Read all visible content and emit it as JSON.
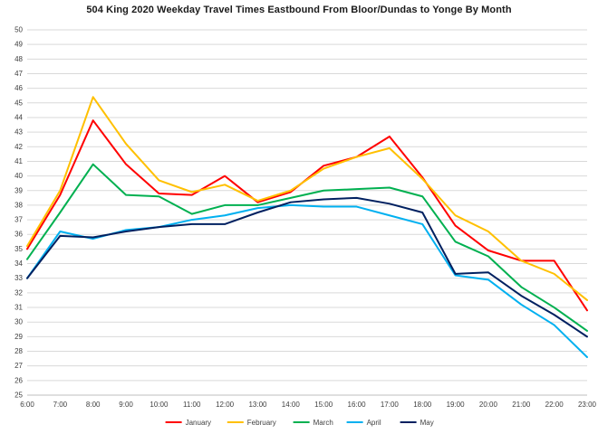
{
  "chart_data": {
    "type": "line",
    "title": "504 King 2020 Weekday Travel Times Eastbound From Bloor/Dundas to Yonge By Month",
    "x": [
      "6:00",
      "7:00",
      "8:00",
      "9:00",
      "10:00",
      "11:00",
      "12:00",
      "13:00",
      "14:00",
      "15:00",
      "16:00",
      "17:00",
      "18:00",
      "19:00",
      "20:00",
      "21:00",
      "22:00",
      "23:00"
    ],
    "ylim": [
      25,
      50
    ],
    "y_tick_step": 1,
    "grid": "horizontal",
    "legend_position": "bottom",
    "colors": {
      "gridline": "#D9D9D9",
      "axis_line": "#BFBFBF",
      "tick_label": "#404040"
    },
    "series": [
      {
        "name": "January",
        "color": "#FF0000",
        "values": [
          35.0,
          38.7,
          43.8,
          40.8,
          38.8,
          38.7,
          40.0,
          38.2,
          38.9,
          40.7,
          41.3,
          42.7,
          39.9,
          36.6,
          34.9,
          34.2,
          34.2,
          30.8
        ]
      },
      {
        "name": "February",
        "color": "#FFC000",
        "values": [
          35.2,
          39.0,
          45.4,
          42.2,
          39.7,
          38.9,
          39.4,
          38.3,
          39.0,
          40.5,
          41.3,
          41.9,
          39.8,
          37.3,
          36.2,
          34.2,
          33.3,
          31.5
        ]
      },
      {
        "name": "March",
        "color": "#00B050",
        "values": [
          34.3,
          37.5,
          40.8,
          38.7,
          38.6,
          37.4,
          38.0,
          38.0,
          38.5,
          39.0,
          39.1,
          39.2,
          38.6,
          35.5,
          34.5,
          32.4,
          31.0,
          29.4
        ]
      },
      {
        "name": "April",
        "color": "#00B0F0",
        "values": [
          33.0,
          36.2,
          35.7,
          36.3,
          36.5,
          37.0,
          37.3,
          37.8,
          38.0,
          37.9,
          37.9,
          37.3,
          36.7,
          33.2,
          32.9,
          31.2,
          29.8,
          27.6
        ]
      },
      {
        "name": "May",
        "color": "#002060",
        "values": [
          33.0,
          35.9,
          35.8,
          36.2,
          36.5,
          36.7,
          36.7,
          37.5,
          38.2,
          38.4,
          38.5,
          38.1,
          37.5,
          33.3,
          33.4,
          31.8,
          30.5,
          29.0
        ]
      }
    ]
  }
}
